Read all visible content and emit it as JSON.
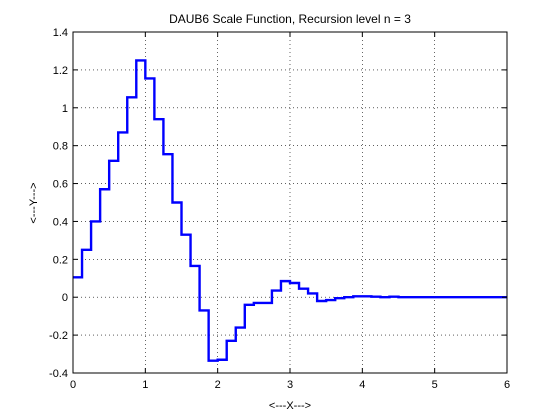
{
  "chart_data": {
    "type": "line",
    "title": "DAUB6 Scale Function, Recursion level n = 3",
    "xlabel": "<---X--->",
    "ylabel": "<---Y--->",
    "xlim": [
      0,
      6
    ],
    "ylim": [
      -0.4,
      1.4
    ],
    "grid": true,
    "x_ticks": [
      0,
      1,
      2,
      3,
      4,
      5,
      6
    ],
    "x_tick_labels": [
      "0",
      "1",
      "2",
      "3",
      "4",
      "5",
      "6"
    ],
    "y_ticks": [
      -0.4,
      -0.2,
      0,
      0.2,
      0.4,
      0.6,
      0.8,
      1,
      1.2,
      1.4
    ],
    "y_tick_labels": [
      "-0.4",
      "-0.2",
      "0",
      "0.2",
      "0.4",
      "0.6",
      "0.8",
      "1",
      "1.2",
      "1.4"
    ],
    "step": 0.125,
    "color": "#0000ff",
    "series": [
      {
        "values": [
          0.105,
          0.25,
          0.4,
          0.57,
          0.72,
          0.87,
          1.055,
          1.25,
          1.155,
          0.94,
          0.755,
          0.5,
          0.33,
          0.165,
          -0.07,
          -0.335,
          -0.33,
          -0.23,
          -0.16,
          -0.04,
          -0.03,
          -0.03,
          0.035,
          0.085,
          0.075,
          0.045,
          0.02,
          -0.02,
          -0.015,
          -0.005,
          0.0,
          0.005,
          0.005,
          0.003,
          0.0,
          0.003,
          0.0,
          0.0,
          0.0,
          0.0,
          0.0,
          0.0,
          0.0,
          0.0,
          0.0,
          0.0,
          0.0,
          0.0
        ]
      }
    ]
  }
}
